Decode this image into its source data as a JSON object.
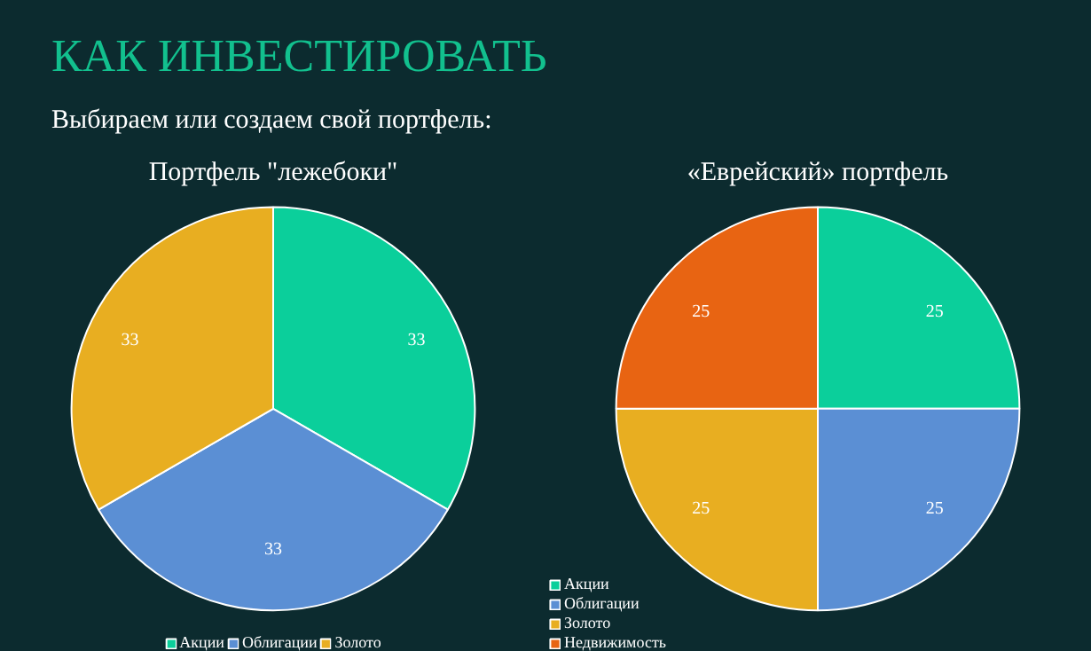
{
  "chart_data": [
    {
      "type": "pie",
      "title": "Портфель \"лежебоки\"",
      "annotations": [
        "КАК ИНВЕСТИРОВАТЬ",
        "Выбираем или создаем свой портфель:"
      ],
      "categories": [
        "Акции",
        "Облигации",
        "Золото"
      ],
      "values": [
        33,
        33,
        33
      ],
      "colors": [
        "#0bcf9b",
        "#5b8fd4",
        "#e8ae21"
      ],
      "data_labels": true,
      "legend": "bottom"
    },
    {
      "type": "pie",
      "title": "«Еврейский» портфель",
      "categories": [
        "Акции",
        "Облигации",
        "Золото",
        "Недвижимость"
      ],
      "values": [
        25,
        25,
        25,
        25
      ],
      "colors": [
        "#0bcf9b",
        "#5b8fd4",
        "#e8ae21",
        "#e86412"
      ],
      "data_labels": true,
      "legend": "bottom left"
    }
  ]
}
